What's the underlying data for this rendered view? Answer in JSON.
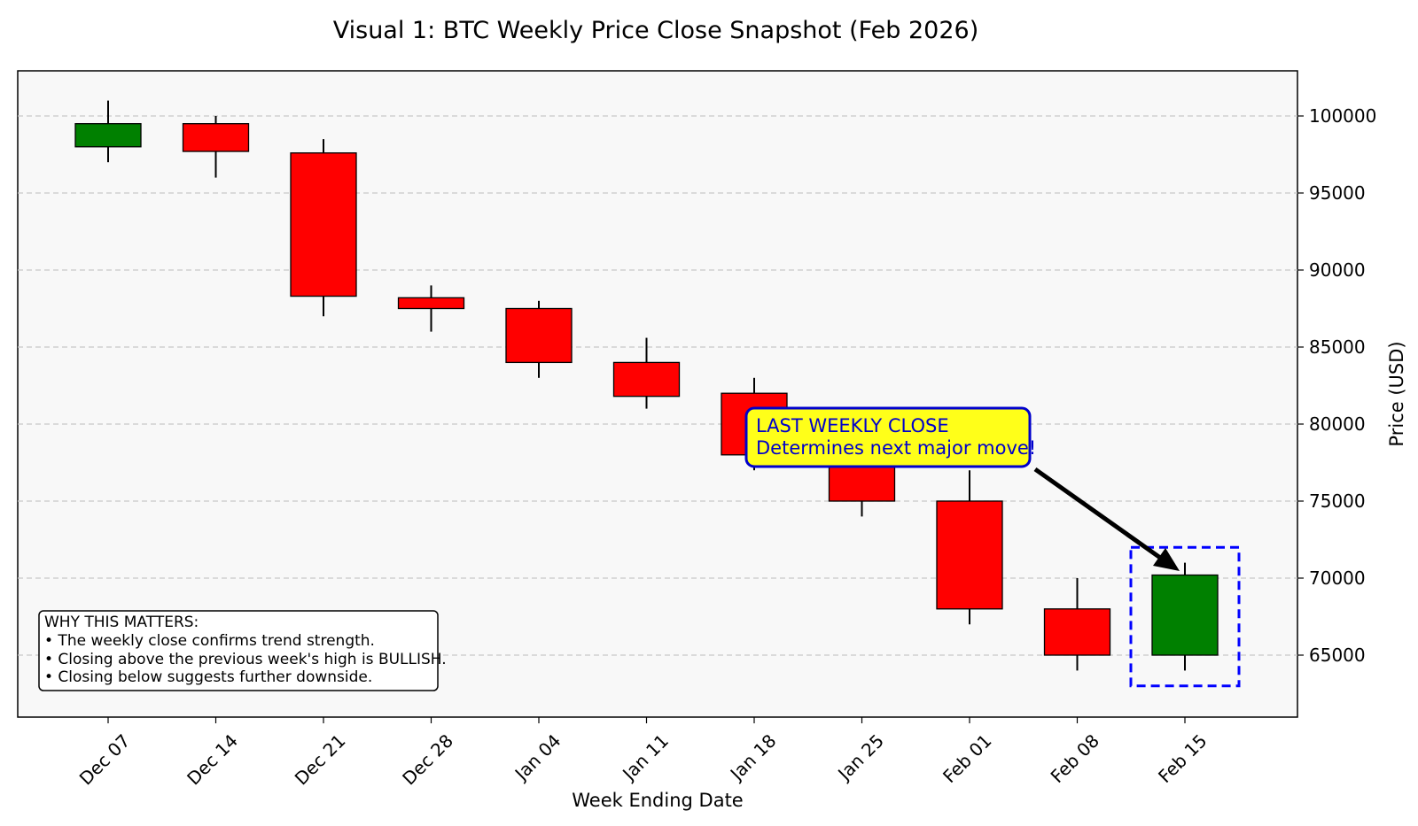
{
  "chart_data": {
    "type": "candlestick",
    "title": "Visual 1: BTC Weekly Price Close Snapshot (Feb 2026)",
    "xlabel": "Week Ending Date",
    "ylabel": "Price (USD)",
    "ylim": [
      62000,
      103000
    ],
    "yticks": [
      65000,
      70000,
      75000,
      80000,
      85000,
      90000,
      95000,
      100000
    ],
    "grid": "horizontal-dashed",
    "y_axis_side": "right",
    "up_color": "#008000",
    "down_color": "#ff0000",
    "categories": [
      "Dec 07",
      "Dec 14",
      "Dec 21",
      "Dec 28",
      "Jan 04",
      "Jan 11",
      "Jan 18",
      "Jan 25",
      "Feb 01",
      "Feb 08",
      "Feb 15"
    ],
    "candles": [
      {
        "week": "Dec 07",
        "open": 98000,
        "high": 101000,
        "low": 97000,
        "close": 99500
      },
      {
        "week": "Dec 14",
        "open": 99500,
        "high": 100000,
        "low": 96000,
        "close": 97700
      },
      {
        "week": "Dec 21",
        "open": 97600,
        "high": 98500,
        "low": 87000,
        "close": 88300
      },
      {
        "week": "Dec 28",
        "open": 88200,
        "high": 89000,
        "low": 86000,
        "close": 87500
      },
      {
        "week": "Jan 04",
        "open": 87500,
        "high": 88000,
        "low": 83000,
        "close": 84000
      },
      {
        "week": "Jan 11",
        "open": 84000,
        "high": 85600,
        "low": 81000,
        "close": 81800
      },
      {
        "week": "Jan 18",
        "open": 82000,
        "high": 83000,
        "low": 77000,
        "close": 78000
      },
      {
        "week": "Jan 25",
        "open": 79000,
        "high": 80000,
        "low": 74000,
        "close": 75000
      },
      {
        "week": "Feb 01",
        "open": 75000,
        "high": 77000,
        "low": 67000,
        "close": 68000
      },
      {
        "week": "Feb 08",
        "open": 68000,
        "high": 70000,
        "low": 64000,
        "close": 65000
      },
      {
        "week": "Feb 15",
        "open": 65000,
        "high": 71000,
        "low": 64000,
        "close": 70200
      }
    ],
    "highlight": {
      "week": "Feb 15",
      "low": 63000,
      "high": 72000,
      "color": "#0000ff"
    },
    "callout": {
      "line1": "LAST WEEKLY CLOSE",
      "line2": "Determines next major move!",
      "background": "#ffff19",
      "border": "#0000cc",
      "text_color": "#0000cc"
    },
    "info_box": {
      "heading": "WHY THIS MATTERS:",
      "lines": [
        "• The weekly close confirms trend strength.",
        "• Closing above the previous week's high is BULLISH.",
        "• Closing below suggests further downside."
      ]
    }
  }
}
